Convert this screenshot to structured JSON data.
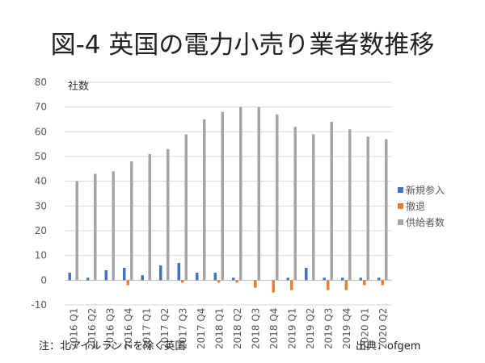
{
  "title": "図-4 英国の電力小売り業者数推移",
  "note": "注：北アイルランドを除く英国",
  "source": "出典：ofgem",
  "chart_data": {
    "type": "bar",
    "title": "図-4 英国の電力小売り業者数推移",
    "ylabel": "社数",
    "ylim": [
      -10,
      80
    ],
    "yticks": [
      -10,
      0,
      10,
      20,
      30,
      40,
      50,
      60,
      70,
      80
    ],
    "grid": true,
    "legend_position": "right",
    "categories": [
      "2016 Q1",
      "2016 Q2",
      "2016 Q3",
      "2016 Q4",
      "2017 Q1",
      "2017 Q2",
      "2017 Q3",
      "2017 Q4",
      "2018 Q1",
      "2018 Q2",
      "2018 Q3",
      "2018 Q4",
      "2019 Q1",
      "2019 Q2",
      "2019 Q3",
      "2019 Q4",
      "2020 Q1",
      "2020 Q2"
    ],
    "series": [
      {
        "name": "新規参入",
        "color": "#4472C4",
        "values": [
          3,
          1,
          4,
          5,
          2,
          6,
          7,
          3,
          3,
          1,
          0,
          0,
          1,
          5,
          1,
          1,
          1,
          1
        ]
      },
      {
        "name": "撤退",
        "color": "#ED7D31",
        "values": [
          0,
          0,
          0,
          -2,
          0,
          0,
          -1,
          0,
          -1,
          -1,
          -3,
          -5,
          -4,
          0,
          -4,
          -4,
          -2,
          -2
        ]
      },
      {
        "name": "供給者数",
        "color": "#A5A5A5",
        "values": [
          40,
          43,
          44,
          48,
          51,
          53,
          59,
          65,
          68,
          70,
          70,
          67,
          62,
          59,
          64,
          61,
          58,
          57
        ]
      }
    ]
  }
}
